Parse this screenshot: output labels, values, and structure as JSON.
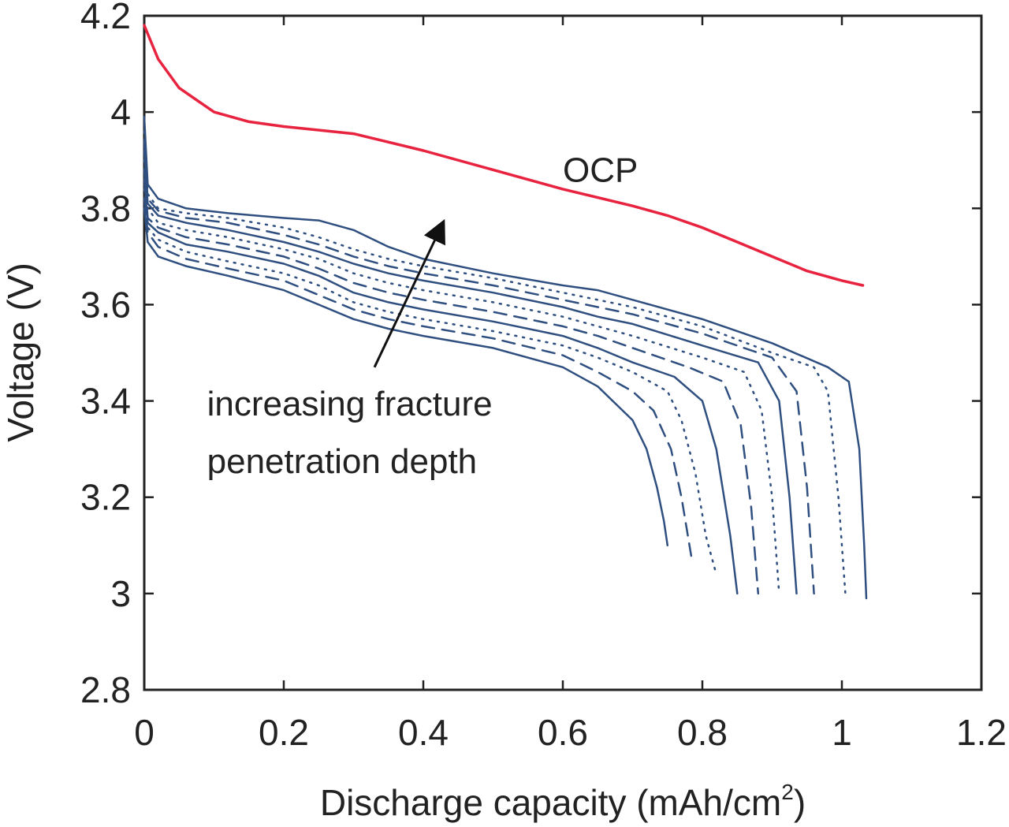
{
  "chart_data": {
    "type": "line",
    "title": "",
    "xlabel": "Discharge capacity (mAh/cm",
    "xlabel_sup": "2",
    "xlabel_close": ")",
    "ylabel": "Voltage (V)",
    "xlim": [
      0,
      1.2
    ],
    "ylim": [
      2.8,
      4.2
    ],
    "xticks": [
      0,
      0.2,
      0.4,
      0.6,
      0.8,
      1,
      1.2
    ],
    "yticks": [
      2.8,
      3.0,
      3.2,
      3.4,
      3.6,
      3.8,
      4.0,
      4.2
    ],
    "xtick_labels": [
      "0",
      "0.2",
      "0.4",
      "0.6",
      "0.8",
      "1",
      "1.2"
    ],
    "ytick_labels": [
      "2.8",
      "3",
      "3.2",
      "3.4",
      "3.6",
      "3.8",
      "4",
      "4.2"
    ],
    "grid": false,
    "colors": {
      "ocp": "#e8233f",
      "discharge": "#2f4f80",
      "axis": "#222222"
    },
    "series": [
      {
        "name": "OCP",
        "style": "solid",
        "color": "#e8233f",
        "x": [
          0,
          0.02,
          0.05,
          0.1,
          0.15,
          0.2,
          0.3,
          0.4,
          0.5,
          0.6,
          0.7,
          0.75,
          0.8,
          0.85,
          0.9,
          0.95,
          1.0,
          1.03
        ],
        "y": [
          4.18,
          4.11,
          4.05,
          4.0,
          3.98,
          3.97,
          3.955,
          3.92,
          3.88,
          3.84,
          3.805,
          3.785,
          3.76,
          3.73,
          3.7,
          3.67,
          3.65,
          3.64
        ]
      },
      {
        "style": "solid",
        "color": "#2f4f80",
        "x": [
          0,
          0.005,
          0.02,
          0.06,
          0.12,
          0.2,
          0.25,
          0.3,
          0.35,
          0.4,
          0.5,
          0.6,
          0.65,
          0.7,
          0.72,
          0.735,
          0.745,
          0.75
        ],
        "y": [
          3.8,
          3.73,
          3.7,
          3.68,
          3.66,
          3.63,
          3.6,
          3.57,
          3.55,
          3.535,
          3.51,
          3.47,
          3.43,
          3.36,
          3.3,
          3.22,
          3.15,
          3.1
        ]
      },
      {
        "style": "dashed",
        "color": "#2f4f80",
        "x": [
          0,
          0.005,
          0.02,
          0.06,
          0.12,
          0.2,
          0.25,
          0.3,
          0.35,
          0.4,
          0.5,
          0.6,
          0.65,
          0.7,
          0.73,
          0.755,
          0.77,
          0.785
        ],
        "y": [
          3.82,
          3.75,
          3.72,
          3.695,
          3.675,
          3.65,
          3.62,
          3.59,
          3.57,
          3.555,
          3.53,
          3.495,
          3.46,
          3.42,
          3.38,
          3.3,
          3.2,
          3.07
        ]
      },
      {
        "style": "dotted",
        "color": "#2f4f80",
        "x": [
          0,
          0.005,
          0.02,
          0.06,
          0.12,
          0.2,
          0.25,
          0.3,
          0.35,
          0.4,
          0.5,
          0.6,
          0.65,
          0.7,
          0.75,
          0.77,
          0.79,
          0.805,
          0.82
        ],
        "y": [
          3.84,
          3.76,
          3.735,
          3.71,
          3.69,
          3.665,
          3.64,
          3.605,
          3.585,
          3.57,
          3.545,
          3.515,
          3.49,
          3.46,
          3.42,
          3.36,
          3.25,
          3.12,
          3.04
        ]
      },
      {
        "style": "solid",
        "color": "#2f4f80",
        "x": [
          0,
          0.005,
          0.02,
          0.06,
          0.12,
          0.2,
          0.25,
          0.3,
          0.35,
          0.4,
          0.5,
          0.6,
          0.65,
          0.7,
          0.76,
          0.8,
          0.82,
          0.84,
          0.85
        ],
        "y": [
          3.86,
          3.77,
          3.75,
          3.725,
          3.71,
          3.685,
          3.66,
          3.625,
          3.605,
          3.59,
          3.565,
          3.535,
          3.51,
          3.48,
          3.45,
          3.4,
          3.3,
          3.12,
          3.0
        ]
      },
      {
        "style": "dashed",
        "color": "#2f4f80",
        "x": [
          0,
          0.005,
          0.02,
          0.06,
          0.12,
          0.2,
          0.25,
          0.3,
          0.35,
          0.4,
          0.5,
          0.6,
          0.65,
          0.7,
          0.78,
          0.83,
          0.855,
          0.87,
          0.88
        ],
        "y": [
          3.88,
          3.78,
          3.76,
          3.74,
          3.725,
          3.7,
          3.675,
          3.645,
          3.625,
          3.61,
          3.585,
          3.555,
          3.535,
          3.51,
          3.47,
          3.44,
          3.35,
          3.18,
          3.0
        ]
      },
      {
        "style": "dotted",
        "color": "#2f4f80",
        "x": [
          0,
          0.005,
          0.02,
          0.06,
          0.12,
          0.2,
          0.25,
          0.3,
          0.35,
          0.4,
          0.5,
          0.6,
          0.65,
          0.7,
          0.8,
          0.86,
          0.885,
          0.9,
          0.91
        ],
        "y": [
          3.9,
          3.8,
          3.77,
          3.755,
          3.74,
          3.715,
          3.695,
          3.665,
          3.645,
          3.63,
          3.605,
          3.575,
          3.555,
          3.535,
          3.49,
          3.46,
          3.38,
          3.2,
          3.0
        ]
      },
      {
        "style": "solid",
        "color": "#2f4f80",
        "x": [
          0,
          0.005,
          0.02,
          0.06,
          0.12,
          0.2,
          0.25,
          0.3,
          0.35,
          0.4,
          0.5,
          0.6,
          0.65,
          0.7,
          0.8,
          0.88,
          0.91,
          0.925,
          0.935
        ],
        "y": [
          3.92,
          3.81,
          3.785,
          3.77,
          3.755,
          3.73,
          3.71,
          3.685,
          3.665,
          3.65,
          3.625,
          3.595,
          3.575,
          3.56,
          3.515,
          3.48,
          3.4,
          3.2,
          3.0
        ]
      },
      {
        "style": "dashed",
        "color": "#2f4f80",
        "x": [
          0,
          0.005,
          0.02,
          0.06,
          0.12,
          0.2,
          0.25,
          0.3,
          0.35,
          0.4,
          0.5,
          0.6,
          0.65,
          0.7,
          0.8,
          0.9,
          0.935,
          0.95,
          0.96
        ],
        "y": [
          3.94,
          3.82,
          3.795,
          3.78,
          3.77,
          3.745,
          3.725,
          3.7,
          3.68,
          3.665,
          3.64,
          3.61,
          3.595,
          3.58,
          3.54,
          3.49,
          3.42,
          3.22,
          3.0
        ]
      },
      {
        "style": "dotted",
        "color": "#2f4f80",
        "x": [
          0,
          0.005,
          0.02,
          0.06,
          0.12,
          0.2,
          0.25,
          0.3,
          0.35,
          0.4,
          0.5,
          0.6,
          0.65,
          0.7,
          0.8,
          0.9,
          0.96,
          0.98,
          0.995,
          1.005
        ],
        "y": [
          3.96,
          3.83,
          3.8,
          3.79,
          3.78,
          3.76,
          3.74,
          3.715,
          3.695,
          3.68,
          3.655,
          3.625,
          3.61,
          3.595,
          3.555,
          3.5,
          3.47,
          3.42,
          3.2,
          3.0
        ]
      },
      {
        "style": "solid",
        "color": "#2f4f80",
        "x": [
          0,
          0.005,
          0.02,
          0.06,
          0.12,
          0.2,
          0.25,
          0.3,
          0.35,
          0.4,
          0.5,
          0.6,
          0.65,
          0.7,
          0.8,
          0.9,
          0.98,
          1.01,
          1.025,
          1.032,
          1.035
        ],
        "y": [
          3.99,
          3.85,
          3.82,
          3.8,
          3.79,
          3.78,
          3.775,
          3.755,
          3.72,
          3.695,
          3.665,
          3.64,
          3.63,
          3.61,
          3.57,
          3.52,
          3.47,
          3.44,
          3.3,
          3.1,
          2.99
        ]
      }
    ],
    "annotations": [
      {
        "text": "OCP",
        "x": 0.6,
        "y": 3.855
      },
      {
        "text": "increasing fracture",
        "x": 0.09,
        "y": 3.37
      },
      {
        "text": "penetration depth",
        "x": 0.09,
        "y": 3.25
      }
    ],
    "arrow": {
      "from": [
        0.33,
        3.47
      ],
      "to": [
        0.425,
        3.76
      ]
    }
  }
}
